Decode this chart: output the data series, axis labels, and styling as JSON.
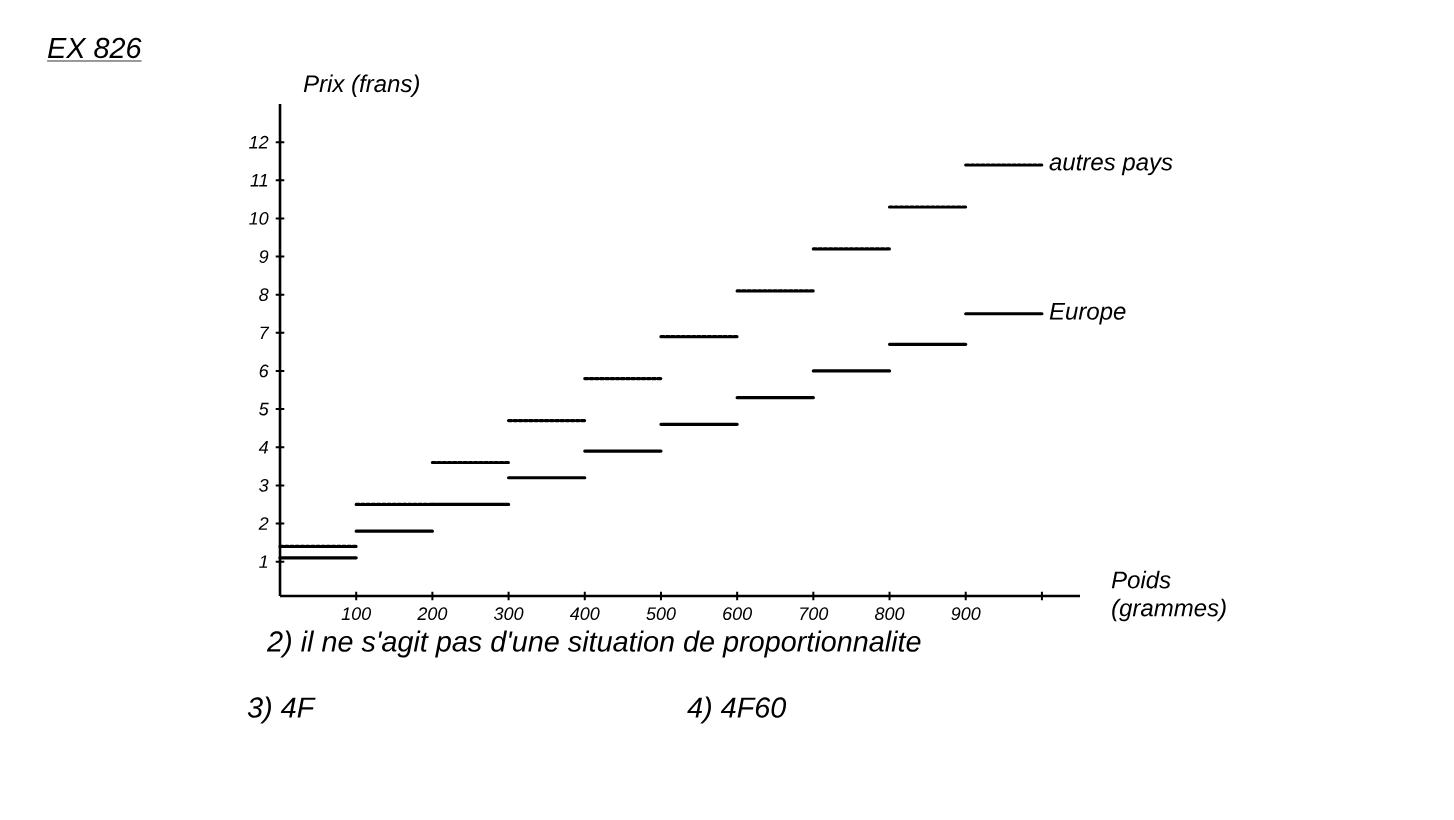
{
  "chart_data": {
    "type": "step",
    "title": "EX 826",
    "ylabel": "Prix (frans)",
    "xlabel": "Poids (grammes)",
    "x": [
      0,
      100,
      200,
      300,
      400,
      500,
      600,
      700,
      800,
      900,
      1000
    ],
    "series": [
      {
        "name": "autres pays",
        "color": "#000000",
        "line_style": "dotted",
        "values": [
          1.4,
          2.5,
          3.6,
          4.7,
          5.8,
          6.9,
          8.1,
          9.2,
          10.3,
          11.4,
          11.4
        ]
      },
      {
        "name": "Europe",
        "color": "#000000",
        "line_style": "solid",
        "values": [
          1.1,
          1.8,
          2.5,
          3.2,
          3.9,
          4.6,
          5.3,
          6.0,
          6.7,
          7.5,
          7.5
        ]
      }
    ],
    "xlim": [
      0,
      1050
    ],
    "ylim": [
      0.1,
      13
    ],
    "xticks": [
      100,
      200,
      300,
      400,
      500,
      600,
      700,
      800,
      900,
      {
        "value": 1000,
        "label": null
      }
    ],
    "yticks": [
      1,
      2,
      3,
      4,
      5,
      6,
      7,
      8,
      9,
      10,
      11,
      12
    ],
    "grid": false,
    "marker": "none",
    "annotations": [
      "2) il ne s'agit pas d'une situation de proportionnalite",
      "3) 4F",
      "4) 4F60"
    ]
  }
}
